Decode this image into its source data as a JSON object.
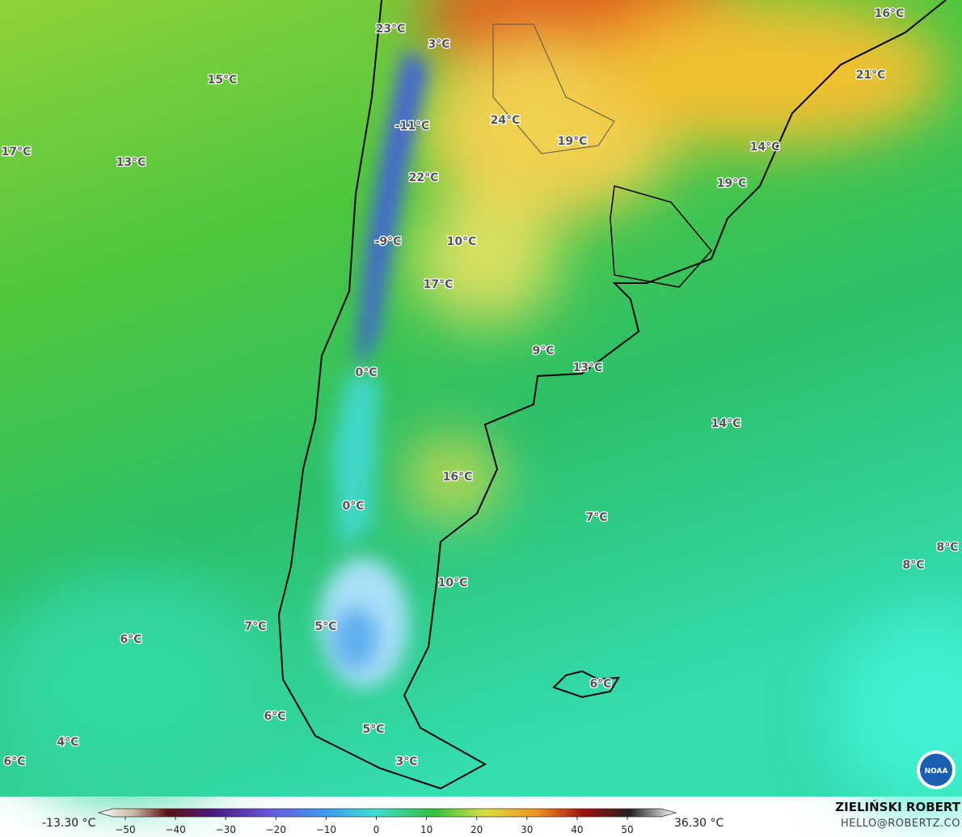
{
  "map": {
    "labels": [
      "23°C",
      "3°C",
      "16°C",
      "15°C",
      "21°C",
      "-11°C",
      "24°C",
      "19°C",
      "17°C",
      "13°C",
      "14°C",
      "22°C",
      "19°C",
      "-9°C",
      "10°C",
      "17°C",
      "9°C",
      "13°C",
      "0°C",
      "14°C",
      "16°C",
      "0°C",
      "7°C",
      "8°C",
      "8°C",
      "10°C",
      "7°C",
      "5°C",
      "6°C",
      "6°C",
      "6°C",
      "5°C",
      "4°C",
      "6°C",
      "3°C"
    ]
  },
  "colorbar": {
    "min_label": "-13.30 °C",
    "max_label": "36.30 °C",
    "ticks": [
      {
        "value": -50,
        "label": "−50"
      },
      {
        "value": -40,
        "label": "−40"
      },
      {
        "value": -30,
        "label": "−30"
      },
      {
        "value": -20,
        "label": "−20"
      },
      {
        "value": -10,
        "label": "−10"
      },
      0,
      10,
      20,
      30,
      40,
      50
    ]
  },
  "credit": {
    "name": "ZIELIŃSKI ROBERT",
    "email": "HELLO@ROBERTZ.CO"
  }
}
